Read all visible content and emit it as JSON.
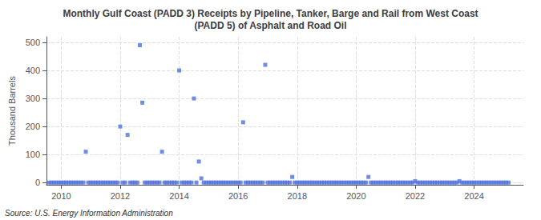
{
  "chart_data": {
    "type": "scatter",
    "title": "Monthly Gulf Coast (PADD 3) Receipts by Pipeline, Tanker, Barge and Rail from West Coast\n(PADD 5) of Asphalt and Road Oil",
    "ylabel": "Thousand Barrels",
    "annotation": "Source: U.S. Energy Information Administration",
    "marker": "square",
    "grid": true,
    "xlim": [
      2009.5,
      2025.67
    ],
    "ylim": [
      -8,
      520
    ],
    "xticks": [
      2010,
      2012,
      2014,
      2016,
      2018,
      2020,
      2022,
      2024
    ],
    "yticks": [
      0,
      100,
      200,
      300,
      400,
      500
    ],
    "x": [
      2009.583,
      2009.667,
      2009.75,
      2009.833,
      2009.917,
      2010.0,
      2010.083,
      2010.167,
      2010.25,
      2010.333,
      2010.417,
      2010.5,
      2010.583,
      2010.667,
      2010.75,
      2010.833,
      2010.917,
      2011.0,
      2011.083,
      2011.167,
      2011.25,
      2011.333,
      2011.417,
      2011.5,
      2011.583,
      2011.667,
      2011.75,
      2011.833,
      2011.917,
      2012.0,
      2012.083,
      2012.167,
      2012.25,
      2012.333,
      2012.417,
      2012.5,
      2012.583,
      2012.667,
      2012.75,
      2012.833,
      2012.917,
      2013.0,
      2013.083,
      2013.167,
      2013.25,
      2013.333,
      2013.417,
      2013.5,
      2013.583,
      2013.667,
      2013.75,
      2013.833,
      2013.917,
      2014.0,
      2014.083,
      2014.167,
      2014.25,
      2014.333,
      2014.417,
      2014.5,
      2014.583,
      2014.667,
      2014.75,
      2014.833,
      2014.917,
      2015.0,
      2015.083,
      2015.167,
      2015.25,
      2015.333,
      2015.417,
      2015.5,
      2015.583,
      2015.667,
      2015.75,
      2015.833,
      2015.917,
      2016.0,
      2016.083,
      2016.167,
      2016.25,
      2016.333,
      2016.417,
      2016.5,
      2016.583,
      2016.667,
      2016.75,
      2016.833,
      2016.917,
      2017.0,
      2017.083,
      2017.167,
      2017.25,
      2017.333,
      2017.417,
      2017.5,
      2017.583,
      2017.667,
      2017.75,
      2017.833,
      2017.917,
      2018.0,
      2018.083,
      2018.167,
      2018.25,
      2018.333,
      2018.417,
      2018.5,
      2018.583,
      2018.667,
      2018.75,
      2018.833,
      2018.917,
      2019.0,
      2019.083,
      2019.167,
      2019.25,
      2019.333,
      2019.417,
      2019.5,
      2019.583,
      2019.667,
      2019.75,
      2019.833,
      2019.917,
      2020.0,
      2020.083,
      2020.167,
      2020.25,
      2020.333,
      2020.417,
      2020.5,
      2020.583,
      2020.667,
      2020.75,
      2020.833,
      2020.917,
      2021.0,
      2021.083,
      2021.167,
      2021.25,
      2021.333,
      2021.417,
      2021.5,
      2021.583,
      2021.667,
      2021.75,
      2021.833,
      2021.917,
      2022.0,
      2022.083,
      2022.167,
      2022.25,
      2022.333,
      2022.417,
      2022.5,
      2022.583,
      2022.667,
      2022.75,
      2022.833,
      2022.917,
      2023.0,
      2023.083,
      2023.167,
      2023.25,
      2023.333,
      2023.417,
      2023.5,
      2023.583,
      2023.667,
      2023.75,
      2023.833,
      2023.917,
      2024.0,
      2024.083,
      2024.167,
      2024.25,
      2024.333,
      2024.417,
      2024.5,
      2024.583,
      2024.667,
      2024.75,
      2024.833,
      2024.917,
      2025.0,
      2025.083,
      2025.167
    ],
    "values": [
      0,
      0,
      0,
      0,
      0,
      0,
      0,
      0,
      0,
      0,
      0,
      0,
      0,
      0,
      0,
      110,
      0,
      0,
      0,
      0,
      0,
      0,
      0,
      0,
      0,
      0,
      0,
      0,
      0,
      200,
      0,
      0,
      170,
      0,
      0,
      0,
      0,
      490,
      285,
      0,
      0,
      0,
      0,
      0,
      0,
      0,
      110,
      0,
      0,
      0,
      0,
      0,
      0,
      400,
      0,
      0,
      0,
      0,
      0,
      300,
      0,
      75,
      15,
      0,
      0,
      0,
      0,
      0,
      0,
      0,
      0,
      0,
      0,
      0,
      0,
      0,
      0,
      0,
      0,
      215,
      0,
      0,
      0,
      0,
      0,
      0,
      0,
      0,
      420,
      0,
      0,
      0,
      0,
      0,
      0,
      0,
      0,
      0,
      0,
      20,
      0,
      0,
      0,
      0,
      0,
      0,
      0,
      0,
      0,
      0,
      0,
      0,
      0,
      0,
      0,
      0,
      0,
      0,
      0,
      0,
      0,
      0,
      0,
      0,
      0,
      0,
      0,
      0,
      0,
      0,
      20,
      0,
      0,
      0,
      0,
      0,
      0,
      0,
      0,
      0,
      0,
      0,
      0,
      0,
      0,
      0,
      0,
      0,
      0,
      5,
      0,
      0,
      0,
      0,
      0,
      0,
      0,
      0,
      0,
      0,
      0,
      0,
      0,
      0,
      0,
      0,
      0,
      5,
      0,
      0,
      0,
      0,
      0,
      0,
      0,
      0,
      0,
      0,
      0,
      0,
      0,
      0,
      0,
      0,
      0,
      0,
      0,
      0
    ]
  }
}
